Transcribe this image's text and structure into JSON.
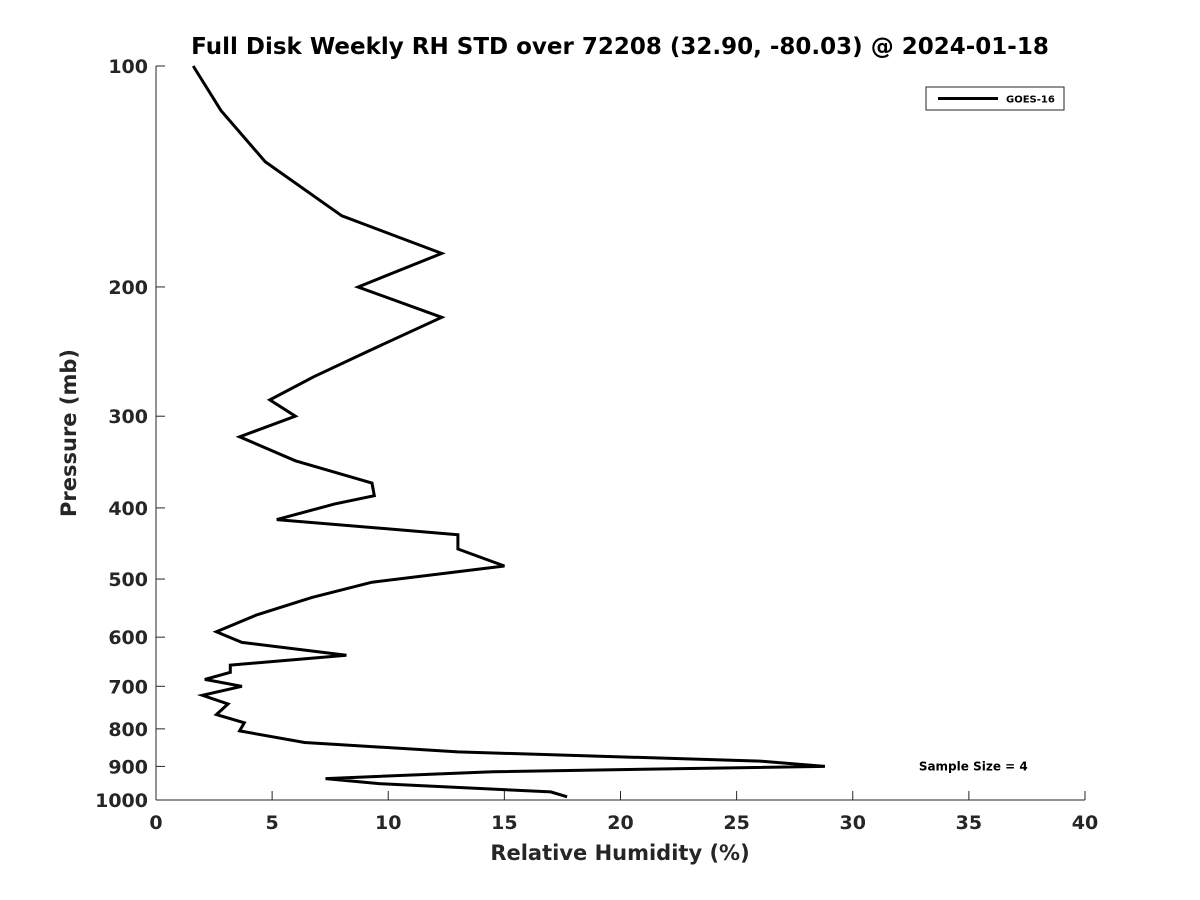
{
  "chart_data": {
    "type": "line",
    "title": "Full Disk Weekly RH STD over 72208 (32.90, -80.03) @ 2024-01-18",
    "xlabel": "Relative Humidity (%)",
    "ylabel": "Pressure (mb)",
    "xlim": [
      0,
      40
    ],
    "ylim": [
      100,
      1000
    ],
    "yscale": "log",
    "y_reversed": true,
    "xticks": [
      0,
      5,
      10,
      15,
      20,
      25,
      30,
      35,
      40
    ],
    "xtick_labels": [
      "0",
      "5",
      "10",
      "15",
      "20",
      "25",
      "30",
      "35",
      "40"
    ],
    "yticks": [
      100,
      200,
      300,
      400,
      500,
      600,
      700,
      800,
      900,
      1000
    ],
    "ytick_labels": [
      "100",
      "200",
      "300",
      "400",
      "500",
      "600",
      "700",
      "800",
      "900",
      "1000"
    ],
    "grid": false,
    "legend_position": "top-right",
    "series": [
      {
        "name": "GOES-16",
        "color": "#000000",
        "x": [
          1.6,
          2.8,
          4.7,
          8.0,
          12.3,
          8.7,
          12.3,
          9.1,
          6.8,
          4.9,
          6.0,
          3.6,
          6.0,
          9.3,
          9.4,
          7.7,
          5.2,
          13.0,
          13.0,
          15.0,
          9.3,
          6.7,
          4.3,
          2.6,
          3.7,
          8.2,
          3.2,
          3.2,
          2.1,
          3.7,
          2.0,
          3.1,
          2.6,
          3.8,
          3.6,
          6.4,
          13.0,
          26.0,
          28.8,
          14.5,
          7.3,
          9.6,
          17.0,
          17.7
        ],
        "y": [
          100,
          115,
          135,
          160,
          180,
          200,
          220,
          245,
          265,
          285,
          300,
          320,
          345,
          370,
          385,
          395,
          415,
          435,
          455,
          480,
          505,
          530,
          560,
          590,
          610,
          635,
          655,
          670,
          685,
          700,
          720,
          740,
          765,
          785,
          805,
          835,
          860,
          885,
          900,
          915,
          935,
          950,
          975,
          990
        ]
      }
    ],
    "annotations": [
      {
        "text": "Sample Size = 4",
        "x": 32.5,
        "y": 900
      }
    ]
  }
}
